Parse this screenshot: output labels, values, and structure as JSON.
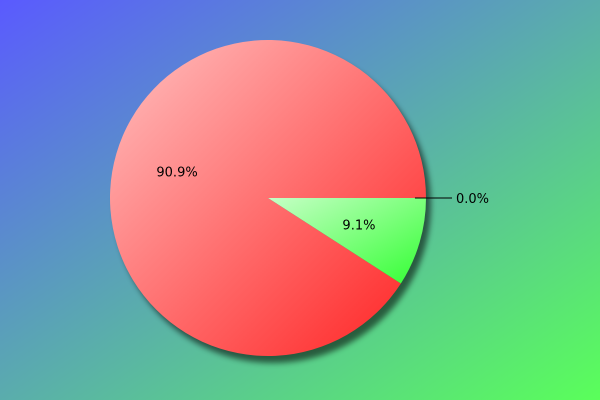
{
  "chart_data": {
    "type": "pie",
    "slices": [
      {
        "value": 90.9,
        "label": "90.9%",
        "color": "#ff2020"
      },
      {
        "value": 9.1,
        "label": "9.1%",
        "color": "#33ff33"
      },
      {
        "value": 0.0,
        "label": "0.0%",
        "color": "#3333ff"
      }
    ],
    "background": {
      "from": "#5a5aff",
      "to": "#5aff5a"
    }
  }
}
